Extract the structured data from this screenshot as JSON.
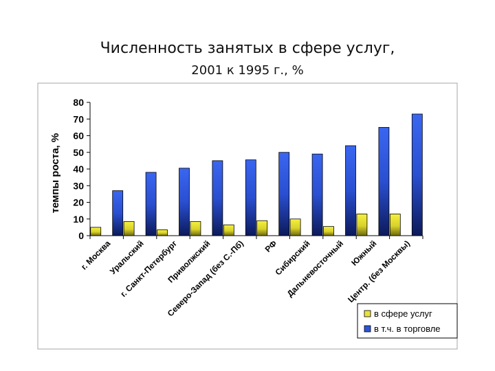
{
  "slide": {
    "title_line1": "Численность занятых в сфере услуг,",
    "title_line2": "2001 к 1995 г., %"
  },
  "chart_data": {
    "type": "bar",
    "title": "",
    "xlabel": "",
    "ylabel": "темпы роста, %",
    "ylim": [
      0,
      80
    ],
    "yticks": [
      0,
      10,
      20,
      30,
      40,
      50,
      60,
      70,
      80
    ],
    "grid": false,
    "legend": "bottom-right",
    "categories": [
      "г. Москва",
      "Уральский",
      "г. Санкт-Петербург",
      "Приволжский",
      "Северо-Запад (без С.-Пб)",
      "РФ",
      "Сибирский",
      "Дальневосточный",
      "Южный",
      "Центр. (без Москвы)"
    ],
    "series": [
      {
        "name": "в сфере услуг",
        "color": "#e8e33a",
        "values": [
          5,
          8.5,
          3.5,
          8.5,
          6.5,
          9,
          10,
          5.5,
          13,
          13
        ]
      },
      {
        "name": "в т.ч. в торговле",
        "color": "#2c55d6",
        "values": [
          27,
          38,
          40.5,
          45,
          45.5,
          50,
          49,
          54,
          65,
          73
        ]
      }
    ]
  }
}
